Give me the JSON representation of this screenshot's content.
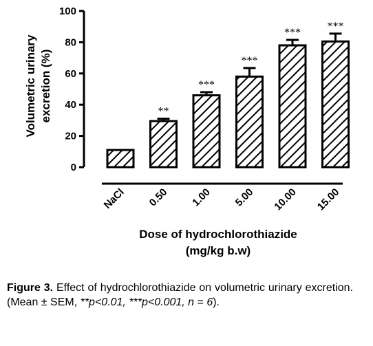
{
  "chart_data": {
    "type": "bar",
    "categories": [
      "NaCl",
      "0.50",
      "1.00",
      "5.00",
      "10.00",
      "15.00"
    ],
    "values": [
      11,
      29.5,
      46,
      58,
      78,
      80.5
    ],
    "errors": [
      0,
      1.5,
      2,
      5.5,
      3.5,
      5
    ],
    "significance": [
      "",
      "**",
      "***",
      "***",
      "***",
      "***"
    ],
    "ylabel_line1": "Volumetric urinary",
    "ylabel_line2": "excretion (%)",
    "xlabel_line1": "Dose of hydrochlorothiazide",
    "xlabel_line2": "(mg/kg b.w)",
    "yticks": [
      0,
      20,
      40,
      60,
      80,
      100
    ],
    "ylim": [
      0,
      100
    ],
    "grid": false,
    "bar_fill": "diagonal-hatch"
  },
  "caption": {
    "label": "Figure 3.",
    "text_1": " Effect of hydrochlorothiazide on volumetric urinary excretion. (Mean ± SEM, ",
    "sig_1": "**p<0.01, ***p<0.001, n",
    "text_2": " = ",
    "n_value": "6",
    "text_3": ")."
  }
}
